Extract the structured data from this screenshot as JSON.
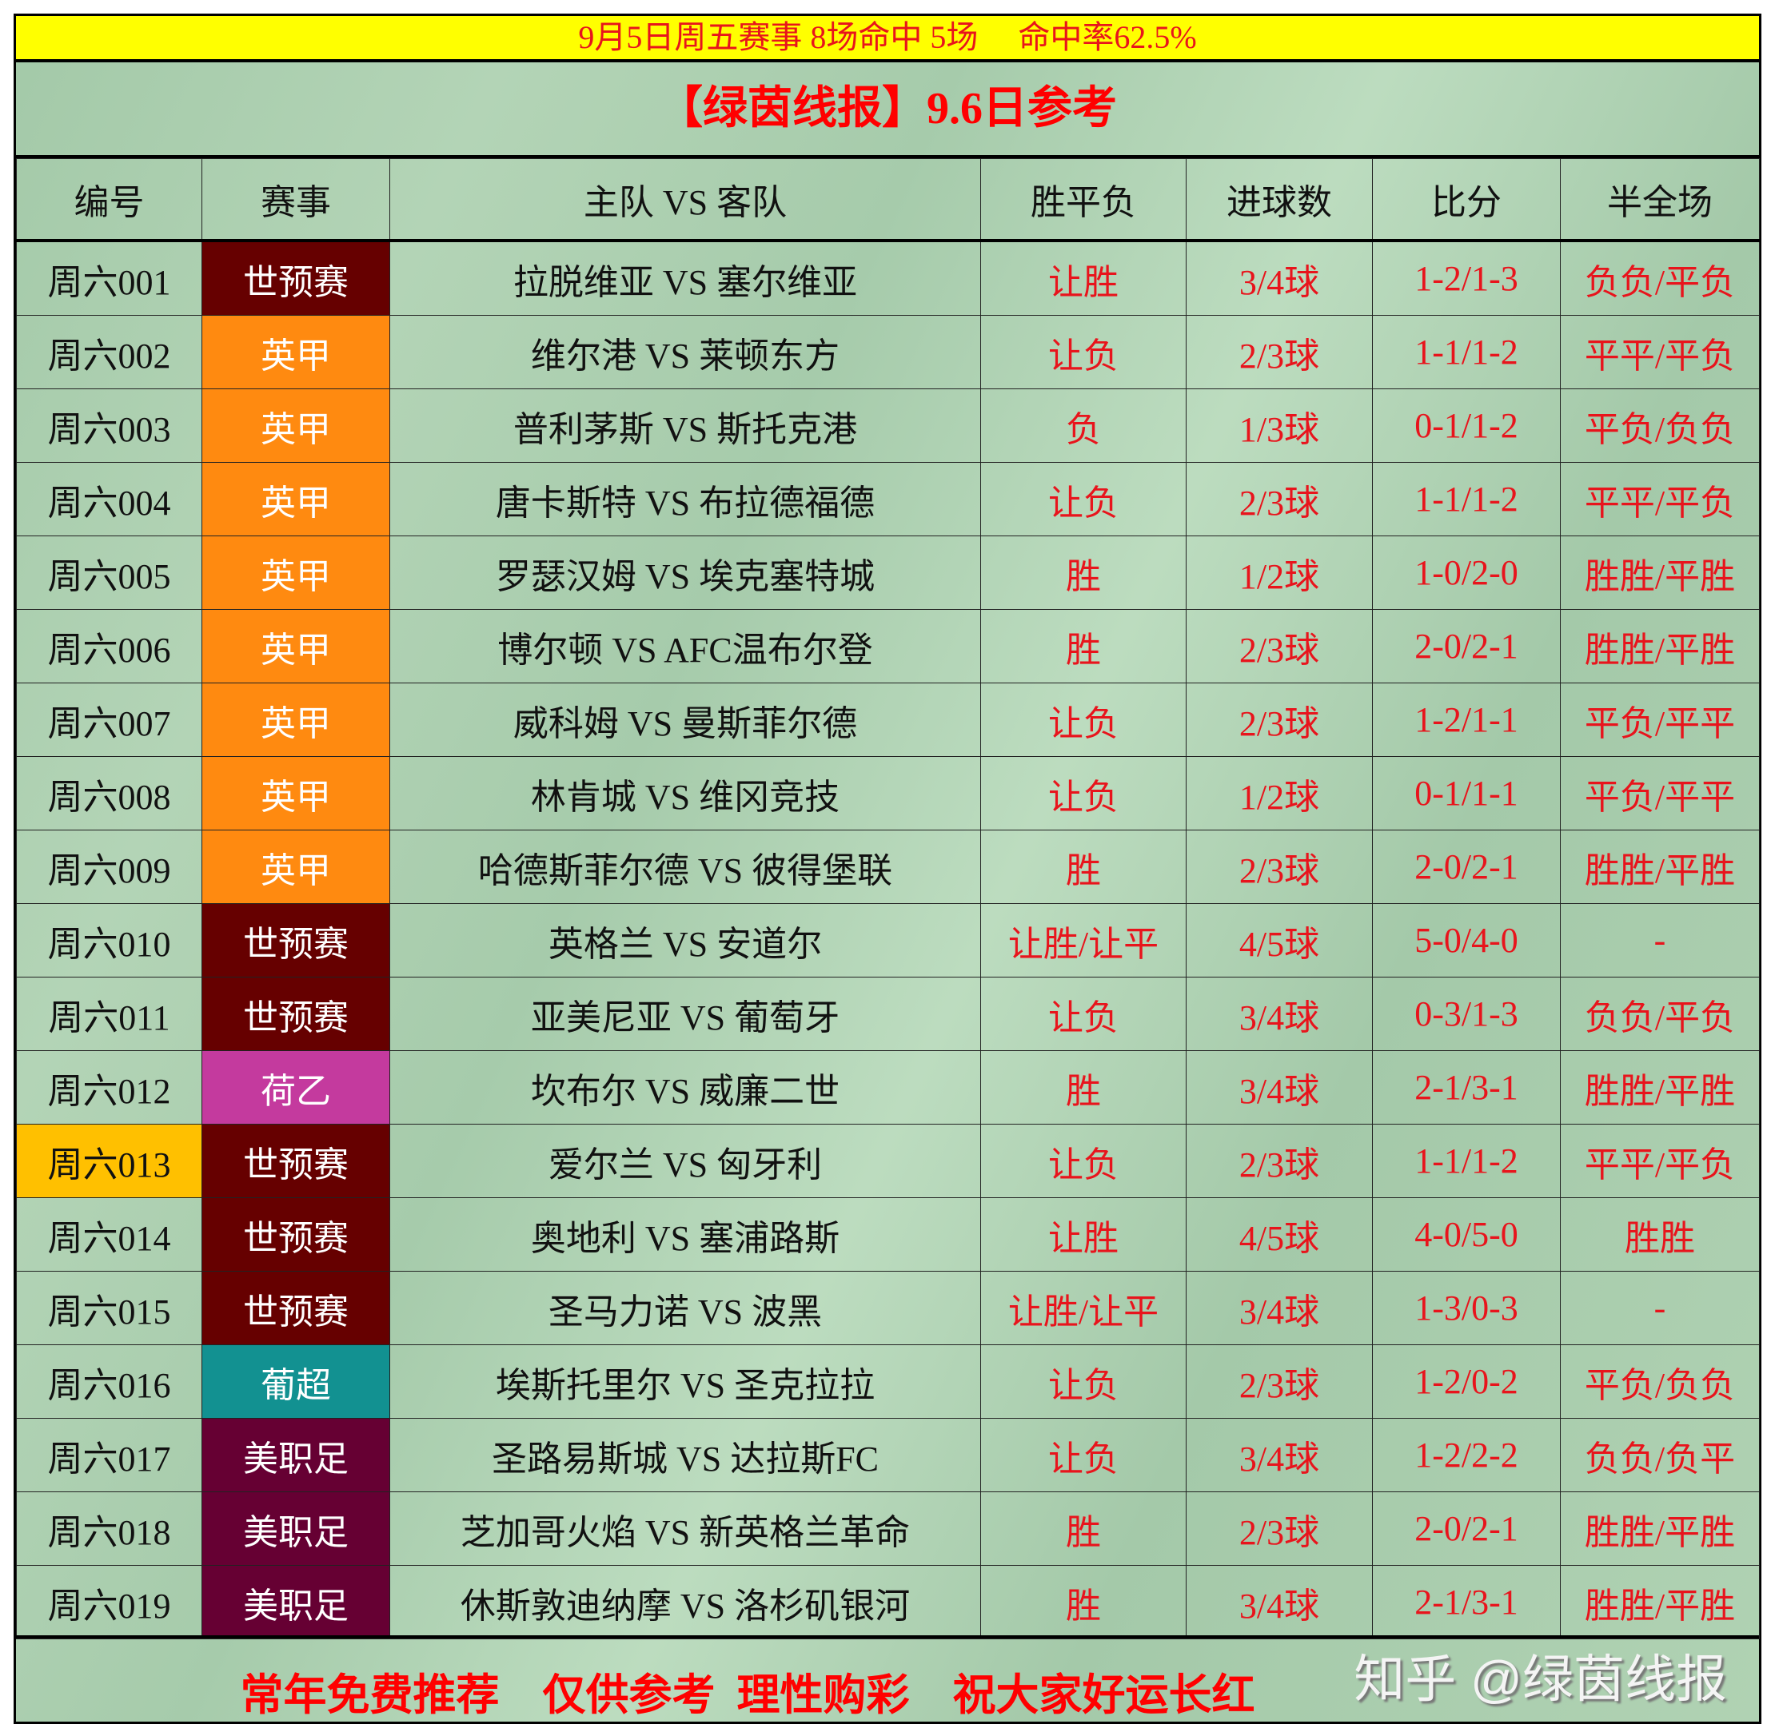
{
  "banner": "9月5日周五赛事 8场命中 5场     命中率62.5%",
  "title": "【绿茵线报】9.6日参考",
  "columns": [
    "编号",
    "赛事",
    "主队 VS 客队",
    "胜平负",
    "进球数",
    "比分",
    "半全场"
  ],
  "league_colors": {
    "世预赛": "#660000",
    "英甲": "#ff8a10",
    "荷乙": "#c43a9e",
    "葡超": "#129191",
    "美职足": "#660033"
  },
  "highlight_id_color": "#ffc000",
  "rows": [
    {
      "id": "周六001",
      "league": "世预赛",
      "match": "拉脱维亚 VS 塞尔维亚",
      "result": "让胜",
      "goals": "3/4球",
      "score": "1-2/1-3",
      "htft": "负负/平负"
    },
    {
      "id": "周六002",
      "league": "英甲",
      "match": "维尔港 VS 莱顿东方",
      "result": "让负",
      "goals": "2/3球",
      "score": "1-1/1-2",
      "htft": "平平/平负"
    },
    {
      "id": "周六003",
      "league": "英甲",
      "match": "普利茅斯 VS 斯托克港",
      "result": "负",
      "goals": "1/3球",
      "score": "0-1/1-2",
      "htft": "平负/负负"
    },
    {
      "id": "周六004",
      "league": "英甲",
      "match": "唐卡斯特 VS 布拉德福德",
      "result": "让负",
      "goals": "2/3球",
      "score": "1-1/1-2",
      "htft": "平平/平负"
    },
    {
      "id": "周六005",
      "league": "英甲",
      "match": "罗瑟汉姆 VS 埃克塞特城",
      "result": "胜",
      "goals": "1/2球",
      "score": "1-0/2-0",
      "htft": "胜胜/平胜"
    },
    {
      "id": "周六006",
      "league": "英甲",
      "match": "博尔顿 VS AFC温布尔登",
      "result": "胜",
      "goals": "2/3球",
      "score": "2-0/2-1",
      "htft": "胜胜/平胜"
    },
    {
      "id": "周六007",
      "league": "英甲",
      "match": "威科姆 VS 曼斯菲尔德",
      "result": "让负",
      "goals": "2/3球",
      "score": "1-2/1-1",
      "htft": "平负/平平"
    },
    {
      "id": "周六008",
      "league": "英甲",
      "match": "林肯城 VS 维冈竞技",
      "result": "让负",
      "goals": "1/2球",
      "score": "0-1/1-1",
      "htft": "平负/平平"
    },
    {
      "id": "周六009",
      "league": "英甲",
      "match": "哈德斯菲尔德 VS 彼得堡联",
      "result": "胜",
      "goals": "2/3球",
      "score": "2-0/2-1",
      "htft": "胜胜/平胜"
    },
    {
      "id": "周六010",
      "league": "世预赛",
      "match": "英格兰 VS 安道尔",
      "result": "让胜/让平",
      "goals": "4/5球",
      "score": "5-0/4-0",
      "htft": "-"
    },
    {
      "id": "周六011",
      "league": "世预赛",
      "match": "亚美尼亚 VS 葡萄牙",
      "result": "让负",
      "goals": "3/4球",
      "score": "0-3/1-3",
      "htft": "负负/平负"
    },
    {
      "id": "周六012",
      "league": "荷乙",
      "match": "坎布尔 VS 威廉二世",
      "result": "胜",
      "goals": "3/4球",
      "score": "2-1/3-1",
      "htft": "胜胜/平胜"
    },
    {
      "id": "周六013",
      "league": "世预赛",
      "match": "爱尔兰 VS 匈牙利",
      "result": "让负",
      "goals": "2/3球",
      "score": "1-1/1-2",
      "htft": "平平/平负",
      "highlight": true
    },
    {
      "id": "周六014",
      "league": "世预赛",
      "match": "奥地利 VS 塞浦路斯",
      "result": "让胜",
      "goals": "4/5球",
      "score": "4-0/5-0",
      "htft": "胜胜"
    },
    {
      "id": "周六015",
      "league": "世预赛",
      "match": "圣马力诺 VS 波黑",
      "result": "让胜/让平",
      "goals": "3/4球",
      "score": "1-3/0-3",
      "htft": "-"
    },
    {
      "id": "周六016",
      "league": "葡超",
      "match": "埃斯托里尔 VS 圣克拉拉",
      "result": "让负",
      "goals": "2/3球",
      "score": "1-2/0-2",
      "htft": "平负/负负"
    },
    {
      "id": "周六017",
      "league": "美职足",
      "match": "圣路易斯城 VS 达拉斯FC",
      "result": "让负",
      "goals": "3/4球",
      "score": "1-2/2-2",
      "htft": "负负/负平"
    },
    {
      "id": "周六018",
      "league": "美职足",
      "match": "芝加哥火焰 VS 新英格兰革命",
      "result": "胜",
      "goals": "2/3球",
      "score": "2-0/2-1",
      "htft": "胜胜/平胜"
    },
    {
      "id": "周六019",
      "league": "美职足",
      "match": "休斯敦迪纳摩 VS 洛杉矶银河",
      "result": "胜",
      "goals": "3/4球",
      "score": "2-1/3-1",
      "htft": "胜胜/平胜"
    }
  ],
  "footer": "常年免费推荐    仅供参考  理性购彩    祝大家好运长红",
  "watermark": "知乎 @绿茵线报"
}
